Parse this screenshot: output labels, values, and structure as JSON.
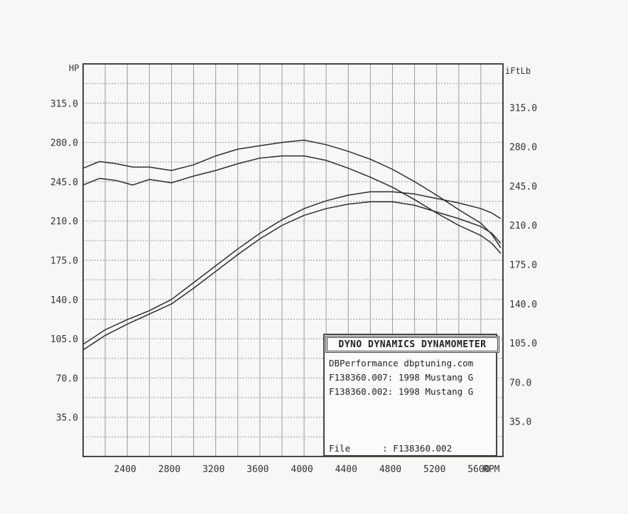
{
  "chart_data": {
    "type": "line",
    "left_axis_label": "HP",
    "right_axis_label": "iFtLb",
    "x_axis_label": "RPM",
    "x_ticks": [
      "2400",
      "2800",
      "3200",
      "3600",
      "4000",
      "4400",
      "4800",
      "5200",
      "5600"
    ],
    "y_ticks": [
      "35.0",
      "70.0",
      "105.0",
      "140.0",
      "175.0",
      "210.0",
      "245.0",
      "280.0",
      "315.0"
    ],
    "y_ticks_right": [
      "35.0",
      "70.0",
      "105.0",
      "140.0",
      "175.0",
      "210.0",
      "245.0",
      "280.0",
      "315.0"
    ],
    "xlim": [
      2000,
      5800
    ],
    "ylim": [
      0,
      350
    ],
    "ylim_right": [
      0,
      350
    ],
    "grid": true,
    "series": [
      {
        "axis": "left",
        "values": [
          [
            2000,
            95
          ],
          [
            2200,
            108
          ],
          [
            2400,
            118
          ],
          [
            2600,
            127
          ],
          [
            2800,
            136
          ],
          [
            3000,
            150
          ],
          [
            3200,
            165
          ],
          [
            3400,
            180
          ],
          [
            3600,
            194
          ],
          [
            3800,
            206
          ],
          [
            4000,
            215
          ],
          [
            4200,
            221
          ],
          [
            4400,
            225
          ],
          [
            4600,
            227
          ],
          [
            4800,
            227
          ],
          [
            5000,
            224
          ],
          [
            5200,
            218
          ],
          [
            5400,
            212
          ],
          [
            5600,
            205
          ],
          [
            5700,
            199
          ],
          [
            5780,
            190
          ]
        ]
      },
      {
        "axis": "left",
        "values": [
          [
            2000,
            100
          ],
          [
            2200,
            113
          ],
          [
            2400,
            122
          ],
          [
            2600,
            130
          ],
          [
            2800,
            140
          ],
          [
            3000,
            155
          ],
          [
            3200,
            170
          ],
          [
            3400,
            185
          ],
          [
            3600,
            199
          ],
          [
            3800,
            211
          ],
          [
            4000,
            221
          ],
          [
            4200,
            228
          ],
          [
            4400,
            233
          ],
          [
            4600,
            236
          ],
          [
            4800,
            236
          ],
          [
            5000,
            234
          ],
          [
            5200,
            230
          ],
          [
            5400,
            226
          ],
          [
            5600,
            221
          ],
          [
            5700,
            217
          ],
          [
            5780,
            212
          ]
        ]
      },
      {
        "axis": "right",
        "values": [
          [
            2000,
            242
          ],
          [
            2150,
            248
          ],
          [
            2300,
            246
          ],
          [
            2450,
            242
          ],
          [
            2600,
            247
          ],
          [
            2800,
            244
          ],
          [
            3000,
            250
          ],
          [
            3200,
            255
          ],
          [
            3400,
            261
          ],
          [
            3600,
            266
          ],
          [
            3800,
            268
          ],
          [
            4000,
            268
          ],
          [
            4200,
            264
          ],
          [
            4400,
            257
          ],
          [
            4600,
            249
          ],
          [
            4800,
            240
          ],
          [
            5000,
            229
          ],
          [
            5200,
            217
          ],
          [
            5400,
            206
          ],
          [
            5600,
            197
          ],
          [
            5700,
            190
          ],
          [
            5780,
            181
          ]
        ]
      },
      {
        "axis": "right",
        "values": [
          [
            2000,
            257
          ],
          [
            2150,
            263
          ],
          [
            2300,
            261
          ],
          [
            2450,
            258
          ],
          [
            2600,
            258
          ],
          [
            2800,
            255
          ],
          [
            3000,
            260
          ],
          [
            3200,
            268
          ],
          [
            3400,
            274
          ],
          [
            3600,
            277
          ],
          [
            3800,
            280
          ],
          [
            4000,
            282
          ],
          [
            4200,
            278
          ],
          [
            4400,
            272
          ],
          [
            4600,
            265
          ],
          [
            4800,
            256
          ],
          [
            5000,
            245
          ],
          [
            5200,
            233
          ],
          [
            5400,
            220
          ],
          [
            5600,
            208
          ],
          [
            5700,
            198
          ],
          [
            5780,
            186
          ]
        ]
      }
    ]
  },
  "legend": {
    "title": "DYNO DYNAMICS DYNAMOMETER",
    "company": "DBPerformance dbptuning.com",
    "run1": "F138360.007: 1998 Mustang G",
    "run2": "F138360.002: 1998 Mustang G",
    "file": "File      : F138360.002"
  },
  "colors": {
    "axes": "#444444",
    "grid": "#9a9a9a",
    "curve": "#2e2e2e",
    "background": "#f7f7f5"
  }
}
